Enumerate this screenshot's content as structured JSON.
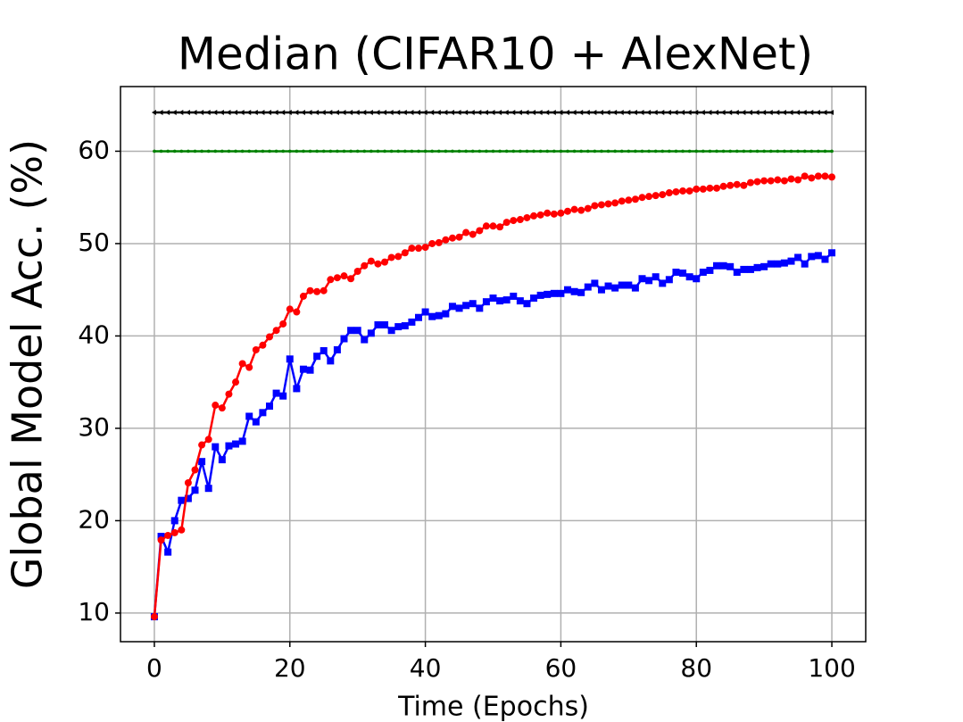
{
  "chart_data": {
    "type": "line",
    "title": "Median (CIFAR10 + AlexNet)",
    "x_label": "Time (Epochs)",
    "y_label": "Global Model Acc. (%)",
    "x": [
      0,
      1,
      2,
      3,
      4,
      5,
      6,
      7,
      8,
      9,
      10,
      11,
      12,
      13,
      14,
      15,
      16,
      17,
      18,
      19,
      20,
      21,
      22,
      23,
      24,
      25,
      26,
      27,
      28,
      29,
      30,
      31,
      32,
      33,
      34,
      35,
      36,
      37,
      38,
      39,
      40,
      41,
      42,
      43,
      44,
      45,
      46,
      47,
      48,
      49,
      50,
      51,
      52,
      53,
      54,
      55,
      56,
      57,
      58,
      59,
      60,
      61,
      62,
      63,
      64,
      65,
      66,
      67,
      68,
      69,
      70,
      71,
      72,
      73,
      74,
      75,
      76,
      77,
      78,
      79,
      80,
      81,
      82,
      83,
      84,
      85,
      86,
      87,
      88,
      89,
      90,
      91,
      92,
      93,
      94,
      95,
      96,
      97,
      98,
      99,
      100
    ],
    "series": [
      {
        "color": "#000000",
        "marker": "<",
        "values": [
          64.2,
          64.2,
          64.2,
          64.2,
          64.2,
          64.2,
          64.2,
          64.2,
          64.2,
          64.2,
          64.2,
          64.2,
          64.2,
          64.2,
          64.2,
          64.2,
          64.2,
          64.2,
          64.2,
          64.2,
          64.2,
          64.2,
          64.2,
          64.2,
          64.2,
          64.2,
          64.2,
          64.2,
          64.2,
          64.2,
          64.2,
          64.2,
          64.2,
          64.2,
          64.2,
          64.2,
          64.2,
          64.2,
          64.2,
          64.2,
          64.2,
          64.2,
          64.2,
          64.2,
          64.2,
          64.2,
          64.2,
          64.2,
          64.2,
          64.2,
          64.2,
          64.2,
          64.2,
          64.2,
          64.2,
          64.2,
          64.2,
          64.2,
          64.2,
          64.2,
          64.2,
          64.2,
          64.2,
          64.2,
          64.2,
          64.2,
          64.2,
          64.2,
          64.2,
          64.2,
          64.2,
          64.2,
          64.2,
          64.2,
          64.2,
          64.2,
          64.2,
          64.2,
          64.2,
          64.2,
          64.2,
          64.2,
          64.2,
          64.2,
          64.2,
          64.2,
          64.2,
          64.2,
          64.2,
          64.2,
          64.2,
          64.2,
          64.2,
          64.2,
          64.2,
          64.2,
          64.2,
          64.2,
          64.2,
          64.2,
          64.2
        ]
      },
      {
        "color": "#008000",
        "marker": ".",
        "values": [
          60,
          60,
          60,
          60,
          60,
          60,
          60,
          60,
          60,
          60,
          60,
          60,
          60,
          60,
          60,
          60,
          60,
          60,
          60,
          60,
          60,
          60,
          60,
          60,
          60,
          60,
          60,
          60,
          60,
          60,
          60,
          60,
          60,
          60,
          60,
          60,
          60,
          60,
          60,
          60,
          60,
          60,
          60,
          60,
          60,
          60,
          60,
          60,
          60,
          60,
          60,
          60,
          60,
          60,
          60,
          60,
          60,
          60,
          60,
          60,
          60,
          60,
          60,
          60,
          60,
          60,
          60,
          60,
          60,
          60,
          60,
          60,
          60,
          60,
          60,
          60,
          60,
          60,
          60,
          60,
          60,
          60,
          60,
          60,
          60,
          60,
          60,
          60,
          60,
          60,
          60,
          60,
          60,
          60,
          60,
          60,
          60,
          60,
          60,
          60,
          60
        ]
      },
      {
        "color": "#0000ff",
        "marker": "s",
        "values": [
          9.6,
          18.3,
          16.6,
          20.0,
          22.2,
          22.4,
          23.3,
          26.4,
          23.5,
          28.0,
          26.6,
          28.1,
          28.3,
          28.6,
          31.3,
          30.7,
          31.7,
          32.4,
          33.8,
          33.5,
          37.5,
          34.3,
          36.4,
          36.3,
          37.8,
          38.4,
          37.3,
          38.5,
          39.7,
          40.6,
          40.6,
          39.6,
          40.3,
          41.2,
          41.2,
          40.6,
          41.0,
          41.1,
          41.5,
          42.0,
          42.6,
          42.1,
          42.2,
          42.4,
          43.2,
          43.0,
          43.3,
          43.5,
          43.0,
          43.7,
          44.1,
          43.8,
          43.9,
          44.3,
          43.8,
          43.5,
          44.1,
          44.4,
          44.5,
          44.6,
          44.6,
          45.0,
          44.8,
          44.7,
          45.3,
          45.7,
          45.0,
          45.4,
          45.2,
          45.5,
          45.5,
          45.2,
          46.2,
          46.0,
          46.4,
          45.7,
          46.1,
          46.9,
          46.8,
          46.4,
          46.2,
          46.9,
          47.1,
          47.6,
          47.6,
          47.5,
          46.9,
          47.2,
          47.2,
          47.4,
          47.5,
          47.8,
          47.8,
          47.9,
          48.1,
          48.5,
          47.8,
          48.6,
          48.7,
          48.3,
          49.0
        ]
      },
      {
        "color": "#ff0000",
        "marker": "o",
        "values": [
          9.6,
          17.9,
          18.4,
          18.7,
          19.0,
          24.1,
          25.5,
          28.2,
          28.8,
          32.5,
          32.2,
          33.7,
          35.0,
          37.0,
          36.6,
          38.5,
          39.0,
          39.9,
          40.6,
          41.3,
          42.9,
          42.6,
          44.3,
          44.9,
          44.8,
          44.9,
          46.1,
          46.3,
          46.5,
          46.2,
          47.0,
          47.6,
          48.1,
          47.8,
          48.0,
          48.5,
          48.6,
          49.0,
          49.5,
          49.5,
          49.6,
          50.0,
          50.1,
          50.4,
          50.6,
          50.7,
          51.2,
          51.0,
          51.4,
          51.9,
          51.9,
          51.8,
          52.3,
          52.5,
          52.6,
          52.8,
          53.0,
          53.1,
          53.3,
          53.2,
          53.3,
          53.5,
          53.7,
          53.6,
          53.8,
          54.1,
          54.2,
          54.3,
          54.4,
          54.6,
          54.7,
          54.8,
          55.0,
          55.1,
          55.2,
          55.3,
          55.5,
          55.6,
          55.7,
          55.7,
          55.9,
          55.9,
          56.0,
          56.0,
          56.2,
          56.3,
          56.4,
          56.3,
          56.6,
          56.7,
          56.8,
          56.8,
          56.9,
          56.8,
          57.0,
          56.9,
          57.3,
          57.1,
          57.3,
          57.3,
          57.2
        ]
      }
    ],
    "xlim": [
      -5,
      105
    ],
    "ylim": [
      6.9,
      67
    ],
    "xticks": [
      0,
      20,
      40,
      60,
      80,
      100
    ],
    "yticks": [
      10,
      20,
      30,
      40,
      50,
      60
    ],
    "grid": true
  }
}
